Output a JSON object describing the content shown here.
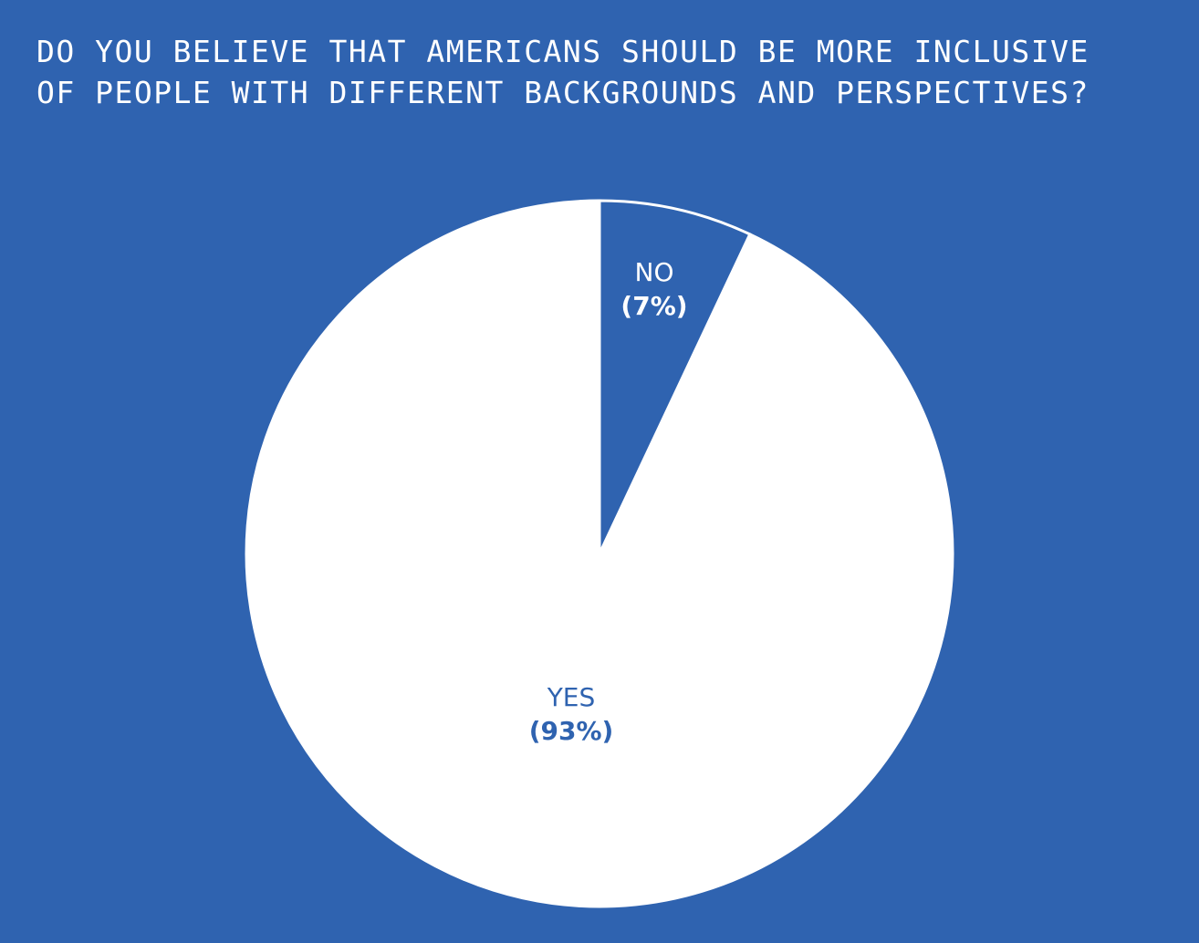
{
  "chart_data": {
    "type": "pie",
    "title_lines": [
      "DO YOU BELIEVE THAT AMERICANS SHOULD BE MORE INCLUSIVE",
      "OF PEOPLE WITH DIFFERENT BACKGROUNDS AND PERSPECTIVES?"
    ],
    "slices": [
      {
        "label": "NO",
        "value": 7,
        "value_label": "(7%)",
        "color": "#2f63b0",
        "label_color": "#ffffff"
      },
      {
        "label": "YES",
        "value": 93,
        "value_label": "(93%)",
        "color": "#ffffff",
        "label_color": "#2f63b0"
      }
    ],
    "start": "12 o'clock, clockwise",
    "legend": "none"
  },
  "colors": {
    "background": "#2f63b0",
    "foreground": "#ffffff"
  }
}
